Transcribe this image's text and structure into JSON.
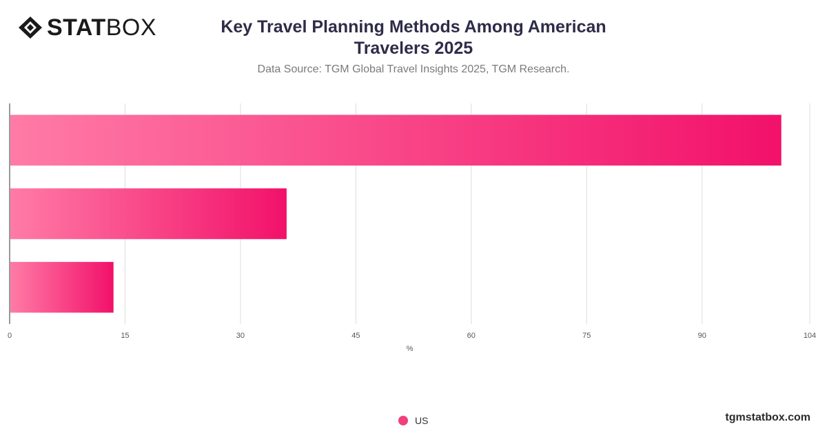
{
  "brand": {
    "bold": "STAT",
    "light": "BOX",
    "icon": "diamond-logo-icon"
  },
  "footer": {
    "site": "tgmstatbox.com"
  },
  "chart_data": {
    "type": "bar",
    "orientation": "horizontal",
    "title": "Key Travel Planning Methods Among American Travelers 2025",
    "subtitle": "Data Source: TGM Global Travel Insights 2025, TGM Research.",
    "xlabel": "%",
    "ylabel": "",
    "xlim": [
      0,
      104
    ],
    "ticks": [
      0,
      15,
      30,
      45,
      60,
      75,
      90,
      104
    ],
    "categories": [
      "",
      "",
      ""
    ],
    "series": [
      {
        "name": "US",
        "values": [
          100.3,
          36.0,
          13.5
        ]
      }
    ],
    "colors": {
      "bar_start": "#ff7ba6",
      "bar_end": "#f2116a",
      "legend": "#f0407e",
      "grid": "#dddddd"
    },
    "grid": true,
    "legend_position": "bottom-center"
  }
}
